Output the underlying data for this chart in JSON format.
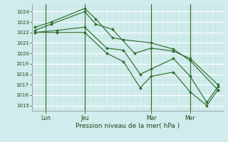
{
  "bg_color": "#d0ecec",
  "line_color": "#2d6e2d",
  "ylim": [
    1014.5,
    1024.7
  ],
  "xlim": [
    -0.5,
    34.0
  ],
  "yticks": [
    1015,
    1016,
    1017,
    1018,
    1019,
    1020,
    1021,
    1022,
    1023,
    1024
  ],
  "xlabel": "Pression niveau de la mer( hPa )",
  "xticklabels": [
    "Lun",
    "Jeu",
    "Mar",
    "Mer"
  ],
  "xtick_positions": [
    2,
    9,
    21,
    28
  ],
  "vlines": [
    2,
    9,
    21,
    28
  ],
  "series": [
    {
      "x": [
        0,
        3,
        9,
        11,
        14,
        16,
        21,
        25,
        28,
        33
      ],
      "y": [
        1022.5,
        1023.0,
        1024.3,
        1023.3,
        1021.5,
        1021.3,
        1021.0,
        1020.4,
        1019.3,
        1016.5
      ]
    },
    {
      "x": [
        0,
        3,
        9,
        11,
        14,
        18,
        21,
        25,
        28,
        33
      ],
      "y": [
        1022.2,
        1022.8,
        1024.0,
        1022.8,
        1022.3,
        1020.0,
        1020.5,
        1020.2,
        1019.5,
        1017.0
      ]
    },
    {
      "x": [
        0,
        4,
        9,
        13,
        16,
        19,
        21,
        25,
        28,
        31,
        33
      ],
      "y": [
        1022.0,
        1022.0,
        1022.0,
        1020.0,
        1019.2,
        1016.7,
        1017.8,
        1018.2,
        1016.3,
        1015.0,
        1016.5
      ]
    },
    {
      "x": [
        0,
        4,
        9,
        13,
        16,
        19,
        21,
        25,
        28,
        31,
        33
      ],
      "y": [
        1022.0,
        1022.2,
        1022.5,
        1020.5,
        1020.3,
        1018.0,
        1018.5,
        1019.5,
        1017.8,
        1015.3,
        1016.8
      ]
    }
  ]
}
